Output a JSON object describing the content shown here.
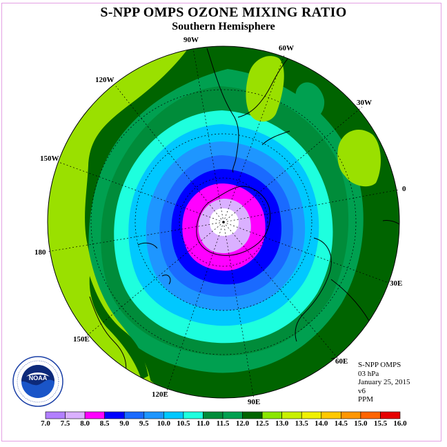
{
  "title": "S-NPP OMPS OZONE MIXING RATIO",
  "subtitle": "Southern Hemisphere",
  "longitude_labels": [
    "90W",
    "60W",
    "120W",
    "30W",
    "150W",
    "0",
    "180",
    "30E",
    "150E",
    "60E",
    "120E",
    "90E"
  ],
  "info": {
    "instrument": "S-NPP OMPS",
    "level": "03 hPa",
    "date": "January 25, 2015",
    "version": "v6",
    "units": "PPM"
  },
  "logo_text": "NOAA",
  "colorbar": {
    "labels": [
      "7.0",
      "7.5",
      "8.0",
      "8.5",
      "9.0",
      "9.5",
      "10.0",
      "10.5",
      "11.0",
      "11.5",
      "12.0",
      "12.5",
      "13.0",
      "13.5",
      "14.0",
      "14.5",
      "15.0",
      "15.5",
      "16.0"
    ],
    "colors": [
      "#b27fff",
      "#dab0ff",
      "#ff00ff",
      "#0000ff",
      "#1a6aff",
      "#1e96ff",
      "#00c8ff",
      "#1effde",
      "#008c3a",
      "#00a050",
      "#006400",
      "#8ae600",
      "#c8f000",
      "#f0f000",
      "#ffc800",
      "#ff9600",
      "#ff6400",
      "#e60000",
      "#a05a2d"
    ]
  }
}
